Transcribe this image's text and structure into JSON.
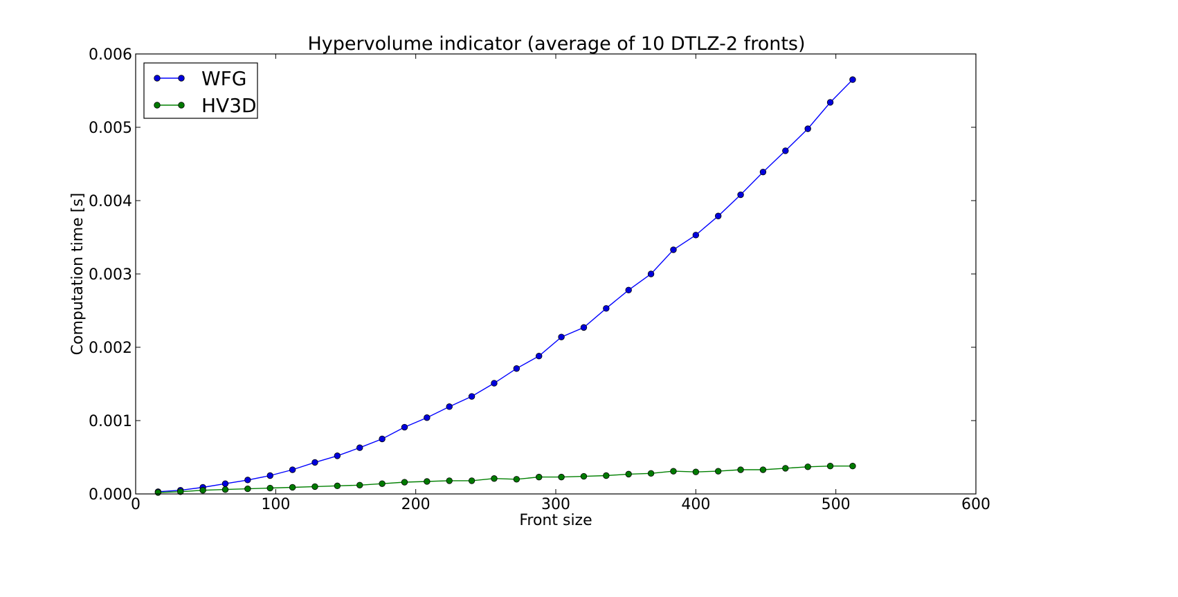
{
  "chart_data": {
    "type": "line",
    "title": "Hypervolume indicator (average of 10 DTLZ-2 fronts)",
    "xlabel": "Front size",
    "ylabel": "Computation time [s]",
    "xlim": [
      0,
      600
    ],
    "ylim": [
      0,
      0.006
    ],
    "xticks": [
      "0",
      "100",
      "200",
      "300",
      "400",
      "500",
      "600"
    ],
    "yticks": [
      "0.000",
      "0.001",
      "0.002",
      "0.003",
      "0.004",
      "0.005",
      "0.006"
    ],
    "grid": false,
    "legend_position": "top-left",
    "x": [
      16,
      32,
      48,
      64,
      80,
      96,
      112,
      128,
      144,
      160,
      176,
      192,
      208,
      224,
      240,
      256,
      272,
      288,
      304,
      320,
      336,
      352,
      368,
      384,
      400,
      416,
      432,
      448,
      464,
      480,
      496,
      512
    ],
    "series": [
      {
        "name": "WFG",
        "color": "#0000ff",
        "marker_color": "#0000dd",
        "values": [
          3e-05,
          5e-05,
          9e-05,
          0.00014,
          0.00019,
          0.00025,
          0.00033,
          0.00043,
          0.00052,
          0.00063,
          0.00075,
          0.00091,
          0.00104,
          0.00119,
          0.00133,
          0.00151,
          0.00171,
          0.00188,
          0.00214,
          0.00227,
          0.00253,
          0.00278,
          0.003,
          0.00333,
          0.00353,
          0.00379,
          0.00408,
          0.00439,
          0.00468,
          0.00498,
          0.00534,
          0.00565
        ]
      },
      {
        "name": "HV3D",
        "color": "#008000",
        "marker_color": "#007a00",
        "values": [
          2e-05,
          3e-05,
          5e-05,
          6e-05,
          7e-05,
          8e-05,
          9e-05,
          0.0001,
          0.00011,
          0.00012,
          0.00014,
          0.00016,
          0.00017,
          0.00018,
          0.00018,
          0.00021,
          0.0002,
          0.00023,
          0.00023,
          0.00024,
          0.00025,
          0.00027,
          0.00028,
          0.00031,
          0.0003,
          0.00031,
          0.00033,
          0.00033,
          0.00035,
          0.00037,
          0.00038,
          0.00038
        ]
      }
    ]
  }
}
